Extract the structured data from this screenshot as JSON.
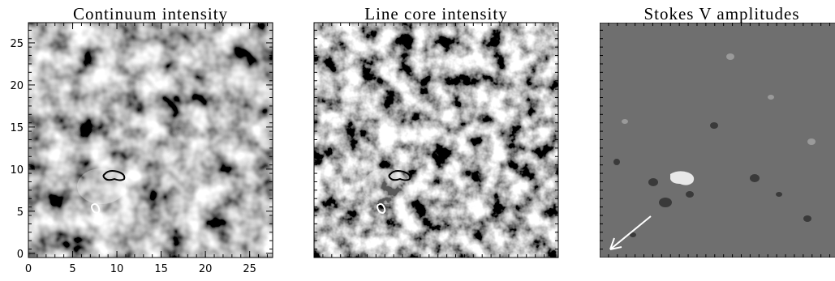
{
  "chart_data": [
    {
      "type": "image",
      "title": "Continuum intensity",
      "xlim": [
        0,
        27.6
      ],
      "ylim": [
        -0.5,
        27.4
      ],
      "xticks": [
        0,
        5,
        10,
        15,
        20,
        25
      ],
      "yticks": [
        0,
        5,
        10,
        15,
        20,
        25
      ]
    },
    {
      "type": "image",
      "title": "Line core intensity"
    },
    {
      "type": "image",
      "title": "Stokes V amplitudes"
    }
  ]
}
